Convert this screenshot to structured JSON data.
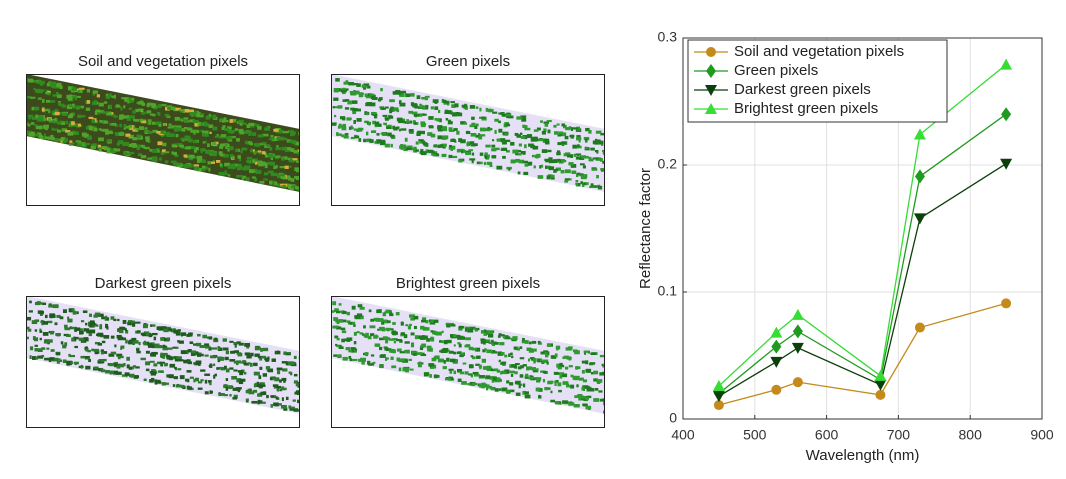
{
  "panels": [
    {
      "title": "Soil and vegetation pixels"
    },
    {
      "title": "Green pixels"
    },
    {
      "title": "Darkest green pixels"
    },
    {
      "title": "Brightest green pixels"
    }
  ],
  "chart_data": {
    "type": "line",
    "x": [
      450,
      530,
      560,
      675,
      730,
      850
    ],
    "series": [
      {
        "name": "Soil and vegetation pixels",
        "color": "#c48a1c",
        "marker": "circle",
        "values": [
          0.011,
          0.023,
          0.029,
          0.019,
          0.072,
          0.091
        ]
      },
      {
        "name": "Green pixels",
        "color": "#1e9a1e",
        "marker": "diamond",
        "values": [
          0.02,
          0.057,
          0.069,
          0.031,
          0.191,
          0.24
        ]
      },
      {
        "name": "Darkest green pixels",
        "color": "#0c3f0c",
        "marker": "triangle-down",
        "values": [
          0.018,
          0.045,
          0.056,
          0.027,
          0.158,
          0.201
        ]
      },
      {
        "name": "Brightest green pixels",
        "color": "#35dd35",
        "marker": "triangle-up",
        "values": [
          0.026,
          0.068,
          0.082,
          0.034,
          0.224,
          0.279
        ]
      }
    ],
    "x_label": "Wavelength (nm)",
    "y_label": "Reflectance factor",
    "xlim": [
      400,
      900
    ],
    "xticks": [
      400,
      500,
      600,
      700,
      800,
      900
    ],
    "ylim": [
      0,
      0.3
    ],
    "yticks": [
      0,
      0.1,
      0.2,
      0.3
    ],
    "grid": true,
    "legend": "upper-left"
  }
}
